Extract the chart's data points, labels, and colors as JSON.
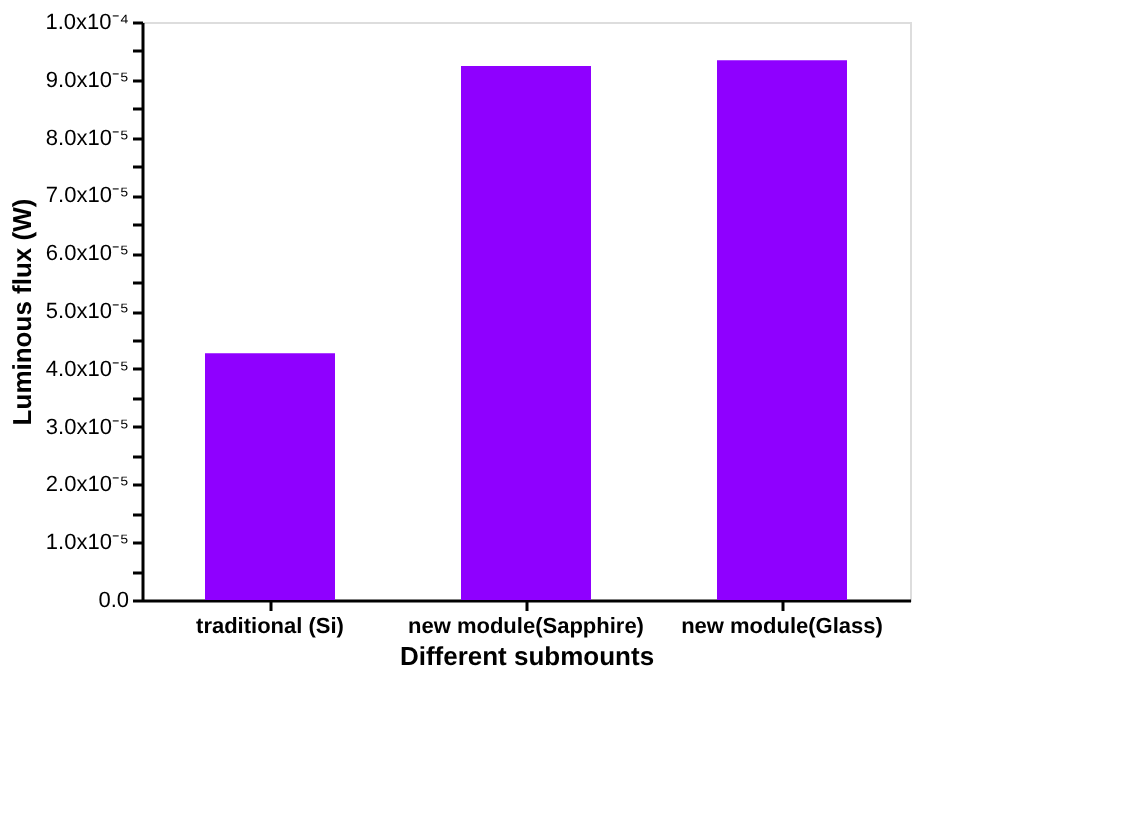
{
  "chart_data": {
    "type": "bar",
    "xlabel": "Different submounts",
    "ylabel": "Luminous flux (W)",
    "categories": [
      "traditional (Si)",
      "new module(Sapphire)",
      "new module(Glass)"
    ],
    "values": [
      4.27e-05,
      9.24e-05,
      9.34e-05
    ],
    "colors": [
      "#8f00ff",
      "#8f00ff",
      "#8f00ff"
    ],
    "ylim": [
      0,
      0.0001
    ],
    "yticks": [
      {
        "value": 0,
        "label": "0.0"
      },
      {
        "value": 5e-06,
        "label": null
      },
      {
        "value": 1e-05,
        "label": "1.0x10⁻⁵"
      },
      {
        "value": 1.5e-05,
        "label": null
      },
      {
        "value": 2e-05,
        "label": "2.0x10⁻⁵"
      },
      {
        "value": 2.5e-05,
        "label": null
      },
      {
        "value": 3e-05,
        "label": "3.0x10⁻⁵"
      },
      {
        "value": 3.5e-05,
        "label": null
      },
      {
        "value": 4e-05,
        "label": "4.0x10⁻⁵"
      },
      {
        "value": 4.5e-05,
        "label": null
      },
      {
        "value": 5e-05,
        "label": "5.0x10⁻⁵"
      },
      {
        "value": 5.5e-05,
        "label": null
      },
      {
        "value": 6e-05,
        "label": "6.0x10⁻⁵"
      },
      {
        "value": 6.5e-05,
        "label": null
      },
      {
        "value": 7e-05,
        "label": "7.0x10⁻⁵"
      },
      {
        "value": 7.5e-05,
        "label": null
      },
      {
        "value": 8e-05,
        "label": "8.0x10⁻⁵"
      },
      {
        "value": 8.5e-05,
        "label": null
      },
      {
        "value": 9e-05,
        "label": "9.0x10⁻⁵"
      },
      {
        "value": 9.5e-05,
        "label": null
      },
      {
        "value": 0.0001,
        "label": "1.0x10⁻⁴"
      }
    ],
    "grid": false,
    "legend": false
  }
}
